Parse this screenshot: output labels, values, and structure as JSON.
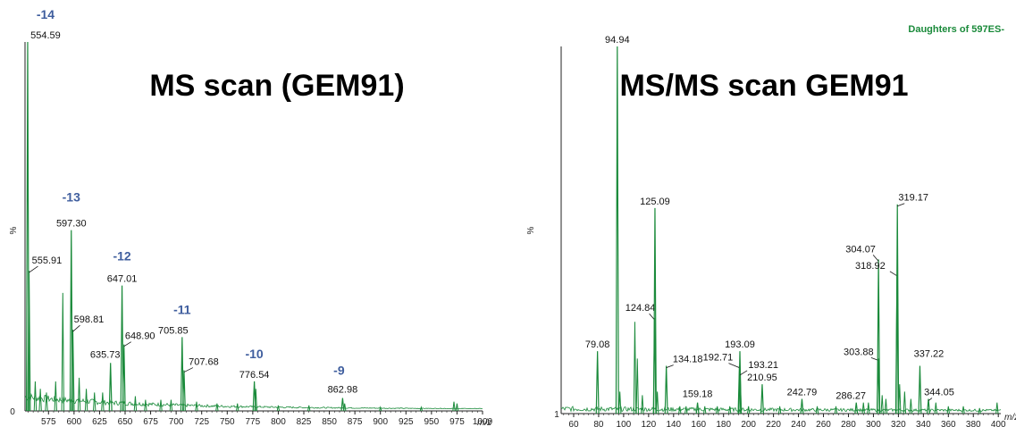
{
  "colors": {
    "trace": "#1a8a3a",
    "charge": "#3f5e9e",
    "func": "#1a8a3a",
    "axis": "#222222"
  },
  "chart_data": [
    {
      "type": "line",
      "title": "MS scan (GEM91)",
      "ylabel": "%",
      "x_unit": "m/z",
      "y_origin_label": "0",
      "xlim": [
        552,
        1000
      ],
      "ylim": [
        0,
        100
      ],
      "x_ticks": [
        "575",
        "600",
        "625",
        "650",
        "675",
        "700",
        "725",
        "750",
        "775",
        "800",
        "825",
        "850",
        "875",
        "900",
        "925",
        "950",
        "975",
        "1000"
      ],
      "peaks": [
        {
          "x": 554.59,
          "y": 100,
          "label": "554.59"
        },
        {
          "x": 555.91,
          "y": 38,
          "label": "555.91"
        },
        {
          "x": 597.3,
          "y": 49,
          "label": "597.30"
        },
        {
          "x": 598.81,
          "y": 22,
          "label": "598.81"
        },
        {
          "x": 635.73,
          "y": 13,
          "label": "635.73"
        },
        {
          "x": 647.01,
          "y": 34,
          "label": "647.01"
        },
        {
          "x": 648.9,
          "y": 18,
          "label": "648.90"
        },
        {
          "x": 705.85,
          "y": 20,
          "label": "705.85"
        },
        {
          "x": 707.68,
          "y": 11,
          "label": "707.68"
        },
        {
          "x": 776.54,
          "y": 8,
          "label": "776.54"
        },
        {
          "x": 862.98,
          "y": 3.5,
          "label": "862.98"
        }
      ],
      "extra_peaks": [
        {
          "x": 562,
          "y": 8
        },
        {
          "x": 567,
          "y": 6
        },
        {
          "x": 573,
          "y": 5
        },
        {
          "x": 582,
          "y": 8
        },
        {
          "x": 589,
          "y": 32
        },
        {
          "x": 605,
          "y": 9
        },
        {
          "x": 612,
          "y": 6
        },
        {
          "x": 620,
          "y": 5
        },
        {
          "x": 628,
          "y": 5
        },
        {
          "x": 660,
          "y": 4
        },
        {
          "x": 670,
          "y": 3
        },
        {
          "x": 685,
          "y": 3
        },
        {
          "x": 695,
          "y": 3
        },
        {
          "x": 720,
          "y": 2.5
        },
        {
          "x": 740,
          "y": 2
        },
        {
          "x": 760,
          "y": 2
        },
        {
          "x": 778,
          "y": 6
        },
        {
          "x": 800,
          "y": 1.5
        },
        {
          "x": 830,
          "y": 1.5
        },
        {
          "x": 865,
          "y": 2
        },
        {
          "x": 900,
          "y": 1
        },
        {
          "x": 940,
          "y": 1
        },
        {
          "x": 972,
          "y": 2.5
        },
        {
          "x": 975,
          "y": 2
        }
      ],
      "annotations": [
        {
          "text": "-14",
          "x": 554.59,
          "y": 100
        },
        {
          "text": "-13",
          "x": 597.3,
          "y": 49
        },
        {
          "text": "-12",
          "x": 647.01,
          "y": 34
        },
        {
          "text": "-11",
          "x": 705.85,
          "y": 20
        },
        {
          "text": "-10",
          "x": 776.54,
          "y": 8
        },
        {
          "text": "-9",
          "x": 862.98,
          "y": 3.5
        }
      ]
    },
    {
      "type": "line",
      "title": "MS/MS scan GEM91",
      "function_label": "Daughters of 597ES-",
      "ylabel": "%",
      "x_unit": "m/z",
      "y_origin_label": "1",
      "xlim": [
        50,
        402
      ],
      "ylim": [
        0,
        100
      ],
      "x_ticks": [
        "60",
        "80",
        "100",
        "120",
        "140",
        "160",
        "180",
        "200",
        "220",
        "240",
        "260",
        "280",
        "300",
        "320",
        "340",
        "360",
        "380",
        "400"
      ],
      "peaks": [
        {
          "x": 79.08,
          "y": 17,
          "label": "79.08"
        },
        {
          "x": 94.94,
          "y": 100,
          "label": "94.94"
        },
        {
          "x": 124.84,
          "y": 26,
          "label": "124.84"
        },
        {
          "x": 125.09,
          "y": 56,
          "label": "125.09"
        },
        {
          "x": 134.18,
          "y": 13,
          "label": "134.18"
        },
        {
          "x": 159.18,
          "y": 3,
          "label": "159.18"
        },
        {
          "x": 192.71,
          "y": 13,
          "label": "192.71"
        },
        {
          "x": 193.09,
          "y": 17,
          "label": "193.09"
        },
        {
          "x": 193.21,
          "y": 11,
          "label": "193.21"
        },
        {
          "x": 210.95,
          "y": 8,
          "label": "210.95"
        },
        {
          "x": 242.79,
          "y": 4,
          "label": "242.79"
        },
        {
          "x": 286.27,
          "y": 3,
          "label": "286.27"
        },
        {
          "x": 303.88,
          "y": 15,
          "label": "303.88"
        },
        {
          "x": 304.07,
          "y": 42,
          "label": "304.07"
        },
        {
          "x": 318.92,
          "y": 38,
          "label": "318.92"
        },
        {
          "x": 319.17,
          "y": 57,
          "label": "319.17"
        },
        {
          "x": 337.22,
          "y": 13,
          "label": "337.22"
        },
        {
          "x": 344.05,
          "y": 4,
          "label": "344.05"
        }
      ],
      "extra_peaks": [
        {
          "x": 97,
          "y": 6
        },
        {
          "x": 109,
          "y": 25
        },
        {
          "x": 111,
          "y": 15
        },
        {
          "x": 115,
          "y": 5
        },
        {
          "x": 127,
          "y": 6
        },
        {
          "x": 145,
          "y": 2
        },
        {
          "x": 150,
          "y": 2
        },
        {
          "x": 165,
          "y": 2
        },
        {
          "x": 175,
          "y": 2
        },
        {
          "x": 185,
          "y": 2
        },
        {
          "x": 200,
          "y": 2
        },
        {
          "x": 225,
          "y": 2
        },
        {
          "x": 255,
          "y": 2
        },
        {
          "x": 270,
          "y": 2
        },
        {
          "x": 292,
          "y": 3
        },
        {
          "x": 296,
          "y": 3
        },
        {
          "x": 307,
          "y": 5
        },
        {
          "x": 310,
          "y": 4
        },
        {
          "x": 321,
          "y": 8
        },
        {
          "x": 325,
          "y": 6
        },
        {
          "x": 330,
          "y": 4
        },
        {
          "x": 350,
          "y": 3
        },
        {
          "x": 360,
          "y": 2
        },
        {
          "x": 372,
          "y": 2
        },
        {
          "x": 385,
          "y": 1.5
        },
        {
          "x": 399,
          "y": 3
        }
      ]
    }
  ]
}
